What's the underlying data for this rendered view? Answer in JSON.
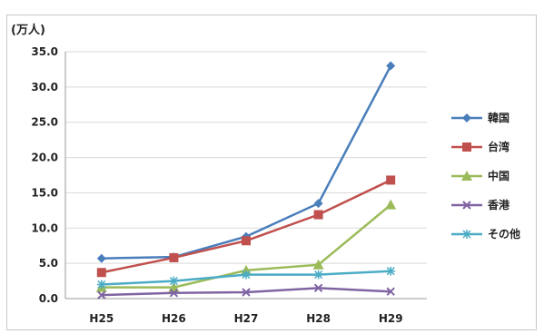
{
  "chart_data": {
    "type": "line",
    "title": "",
    "y_unit_label": "(万人)",
    "categories": [
      "H25",
      "H26",
      "H27",
      "H28",
      "H29"
    ],
    "ylim": [
      0,
      35
    ],
    "yticks": [
      "0.0",
      "5.0",
      "10.0",
      "15.0",
      "20.0",
      "25.0",
      "30.0",
      "35.0"
    ],
    "grid": true,
    "legend_position": "right",
    "series": [
      {
        "name": "韓国",
        "color": "#4a7ebb",
        "marker": "diamond",
        "values": [
          5.7,
          5.9,
          8.8,
          13.5,
          33.0
        ]
      },
      {
        "name": "台湾",
        "color": "#c0504d",
        "marker": "square",
        "values": [
          3.7,
          5.8,
          8.2,
          11.9,
          16.8
        ]
      },
      {
        "name": "中国",
        "color": "#9bbb59",
        "marker": "triangle",
        "values": [
          1.6,
          1.6,
          4.0,
          4.8,
          13.3
        ]
      },
      {
        "name": "香港",
        "color": "#8064a2",
        "marker": "x",
        "values": [
          0.5,
          0.8,
          0.9,
          1.5,
          1.0
        ]
      },
      {
        "name": "その他",
        "color": "#4bacc6",
        "marker": "star",
        "values": [
          2.0,
          2.5,
          3.4,
          3.4,
          3.9
        ]
      }
    ]
  }
}
